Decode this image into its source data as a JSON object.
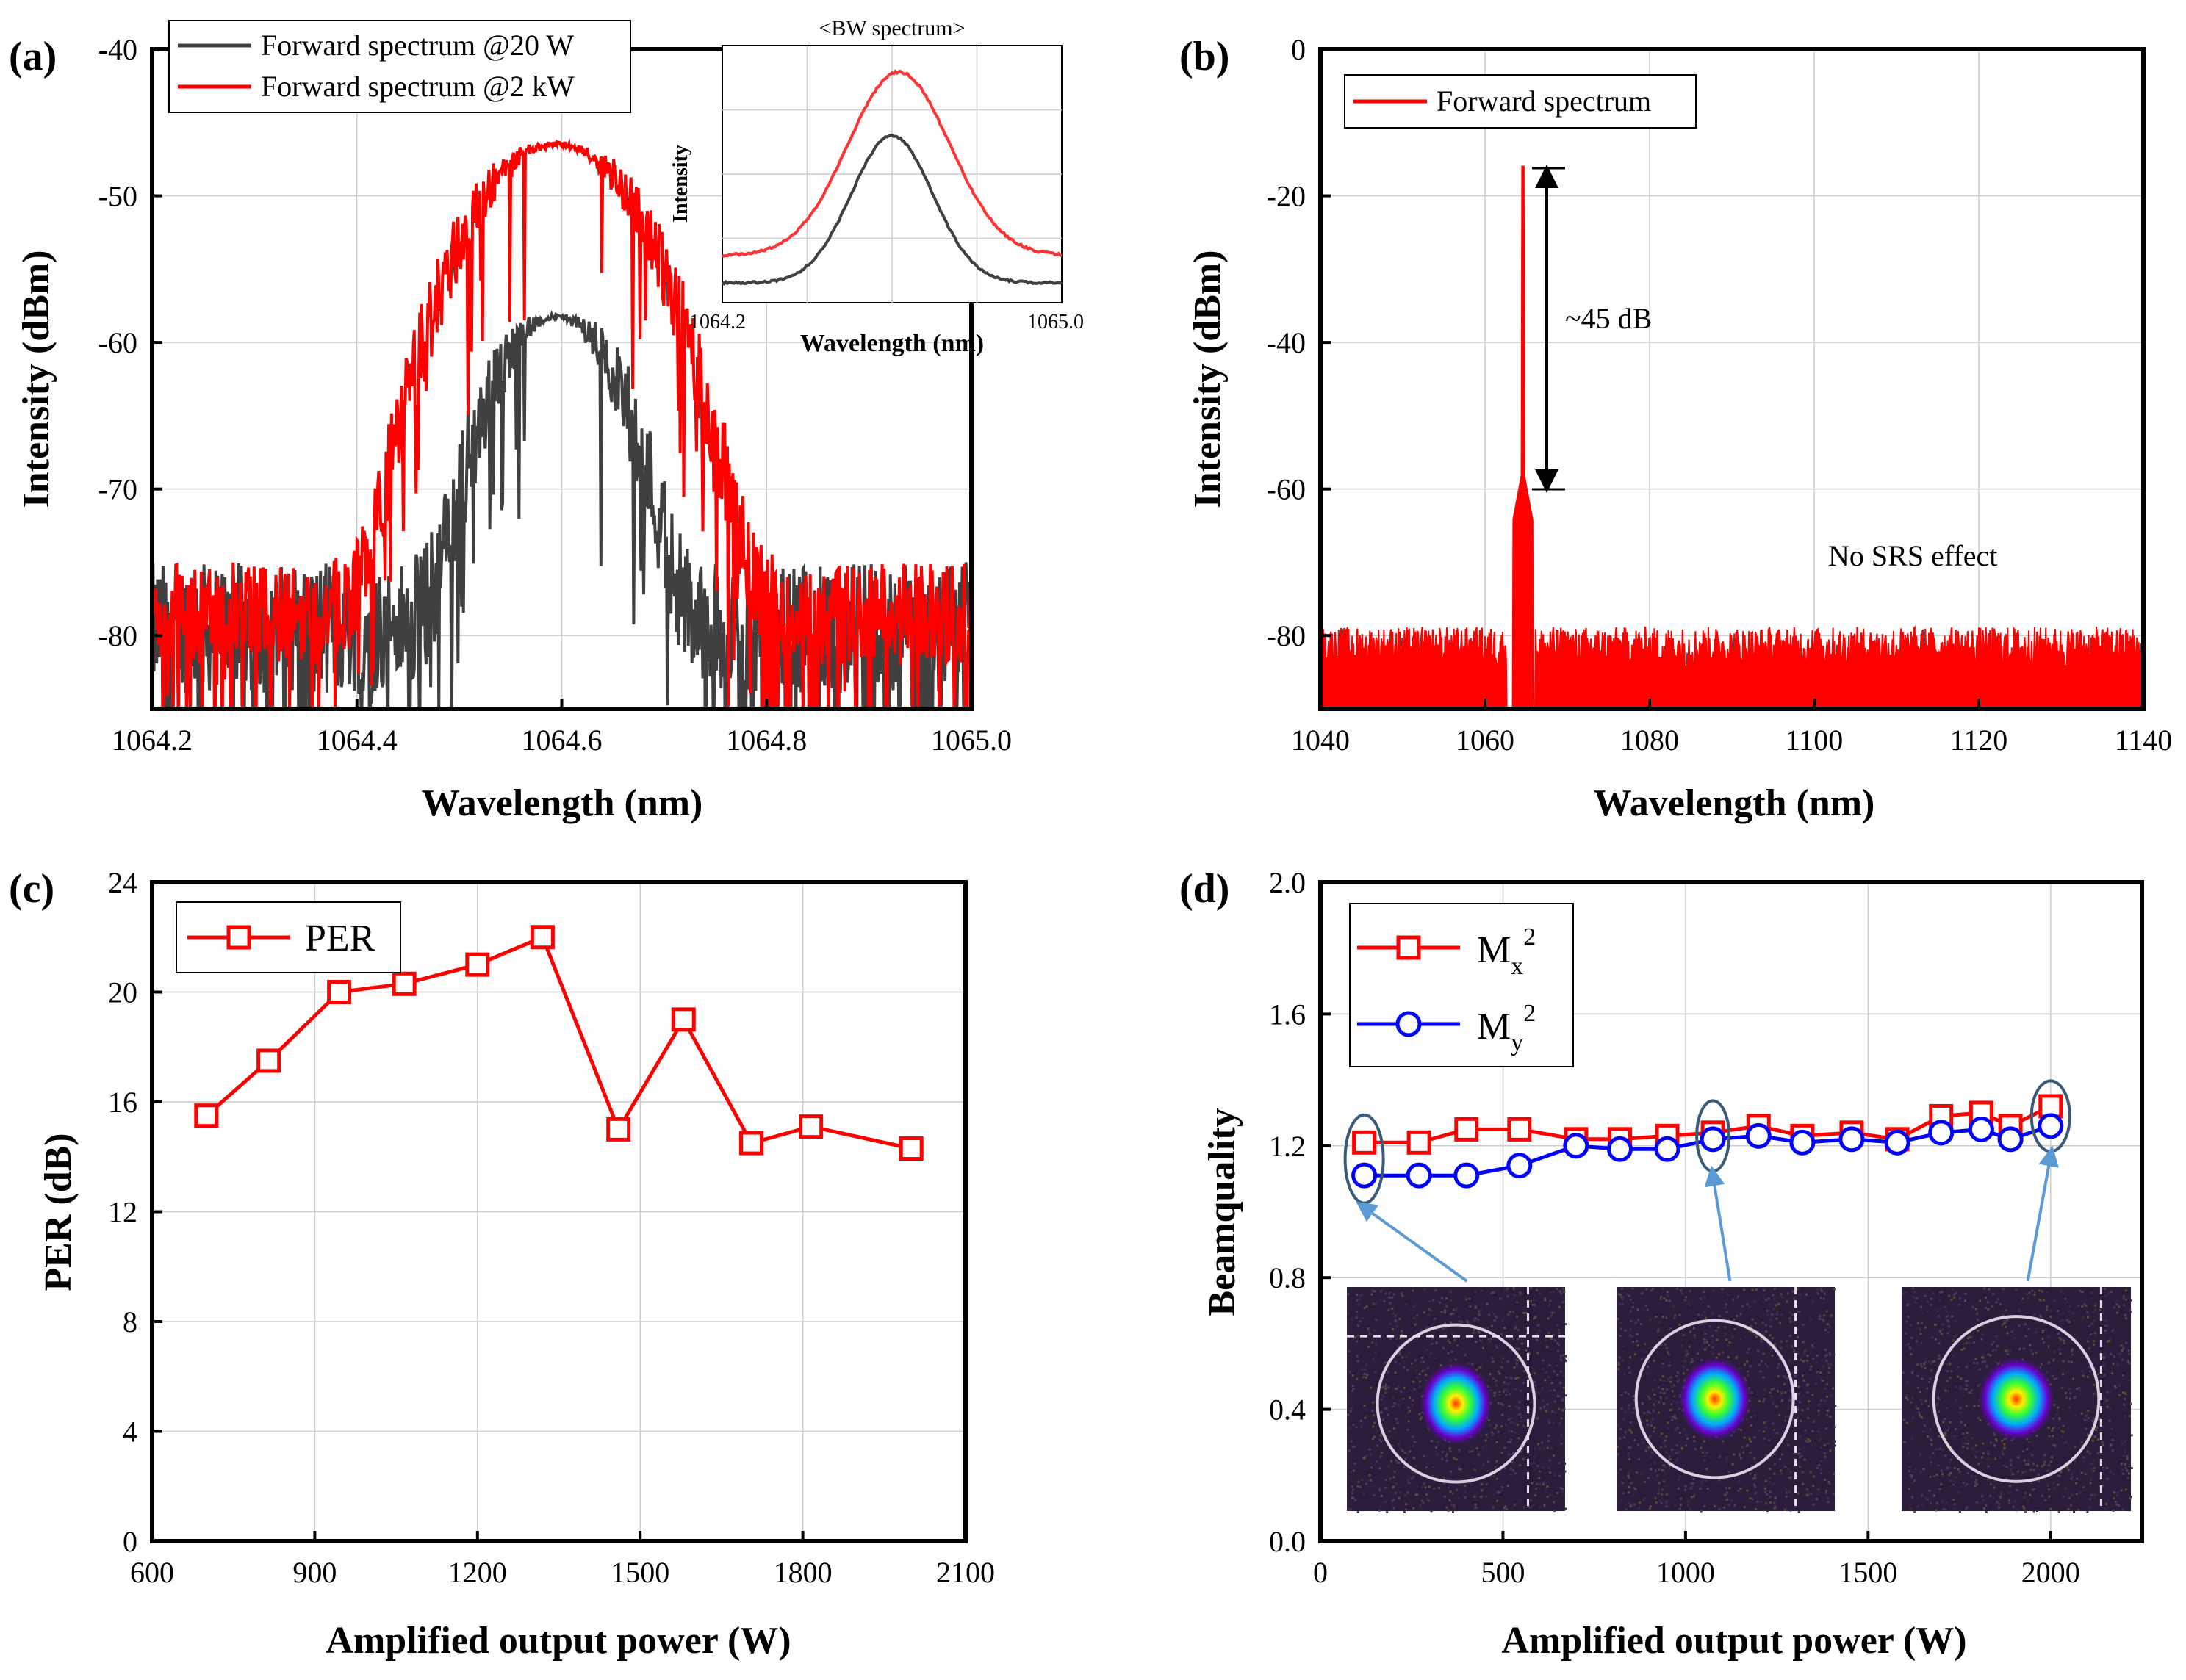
{
  "figure": {
    "a": {
      "label": "(a)",
      "legend": [
        "Forward spectrum @20 W",
        "Forward spectrum @2 kW"
      ],
      "inset": {
        "title": "<BW spectrum>",
        "ylabel": "Intensity",
        "xlabel": "Wavelength (nm)",
        "xtick_left": "1064.2",
        "xtick_right": "1065.0"
      }
    },
    "b": {
      "label": "(b)",
      "legend": [
        "Forward spectrum"
      ],
      "annotation_db": "~45 dB",
      "annotation_srs": "No SRS effect"
    },
    "c": {
      "label": "(c)",
      "legend": [
        "PER"
      ]
    },
    "d": {
      "label": "(d)",
      "legend": [
        "M",
        "M"
      ],
      "legend_sub": [
        "x",
        "y"
      ],
      "legend_sup": [
        "2",
        "2"
      ]
    }
  },
  "chart_data": [
    {
      "id": "a",
      "type": "line",
      "xlabel": "Wavelength (nm)",
      "ylabel": "Intensity (dBm)",
      "xlim": [
        1064.2,
        1065.0
      ],
      "ylim": [
        -85,
        -40
      ],
      "xticks": [
        "1064.2",
        "1064.4",
        "1064.6",
        "1064.8",
        "1065.0"
      ],
      "yticks": [
        "-40",
        "-50",
        "-60",
        "-70",
        "-80"
      ],
      "xtick_values": [
        1064.2,
        1064.4,
        1064.6,
        1064.8,
        1065.0
      ],
      "ytick_values": [
        -40,
        -50,
        -60,
        -70,
        -80
      ],
      "series": [
        {
          "name": "Forward spectrum @20 W",
          "color": "#404040",
          "peak_x": 1064.595,
          "peak_y": -58.3,
          "sigma": 0.045,
          "noise_floor": -79.5,
          "noise_amp": 4.5
        },
        {
          "name": "Forward spectrum @2 kW",
          "color": "#ff0000",
          "peak_x": 1064.595,
          "peak_y": -46.5,
          "sigma": 0.06,
          "noise_floor": -78.5,
          "noise_amp": 3.5
        }
      ]
    },
    {
      "id": "b",
      "type": "line",
      "xlabel": "Wavelength (nm)",
      "ylabel": "Intensity (dBm)",
      "xlim": [
        1040,
        1140
      ],
      "ylim": [
        -90,
        0
      ],
      "xticks": [
        "1040",
        "1060",
        "1080",
        "1100",
        "1120",
        "1140"
      ],
      "yticks": [
        "0",
        "-20",
        "-40",
        "-60",
        "-80"
      ],
      "xtick_values": [
        1040,
        1060,
        1080,
        1100,
        1120,
        1140
      ],
      "ytick_values": [
        0,
        -20,
        -40,
        -60,
        -80
      ],
      "series": [
        {
          "name": "Forward spectrum",
          "color": "#ff0000",
          "peak_x": 1064.6,
          "peak_y": -16,
          "noise_floor": -83,
          "noise_amp": 4
        }
      ],
      "arrow_range": [
        -16,
        -60
      ]
    },
    {
      "id": "c",
      "type": "line",
      "xlabel": "Amplified output power (W)",
      "ylabel": "PER (dB)",
      "xlim": [
        600,
        2100
      ],
      "ylim": [
        0,
        24
      ],
      "xticks": [
        "600",
        "900",
        "1200",
        "1500",
        "1800",
        "2100"
      ],
      "yticks": [
        "0",
        "4",
        "8",
        "12",
        "16",
        "20",
        "24"
      ],
      "xtick_values": [
        600,
        900,
        1200,
        1500,
        1800,
        2100
      ],
      "ytick_values": [
        0,
        4,
        8,
        12,
        16,
        20,
        24
      ],
      "series": [
        {
          "name": "PER",
          "color": "#ff0000",
          "marker": "square",
          "x": [
            700,
            815,
            945,
            1065,
            1200,
            1320,
            1460,
            1580,
            1705,
            1815,
            2000
          ],
          "y": [
            15.5,
            17.5,
            20.0,
            20.3,
            21.0,
            22.0,
            15.0,
            19.0,
            14.5,
            15.1,
            14.3
          ]
        }
      ]
    },
    {
      "id": "d",
      "type": "line",
      "xlabel": "Amplified output power (W)",
      "ylabel": "Beamquality",
      "xlim": [
        0,
        2250
      ],
      "ylim": [
        0.0,
        2.0
      ],
      "xticks": [
        "0",
        "500",
        "1000",
        "1500",
        "2000"
      ],
      "yticks": [
        "0.0",
        "0.4",
        "0.8",
        "1.2",
        "1.6",
        "2.0"
      ],
      "xtick_values": [
        0,
        500,
        1000,
        1500,
        2000
      ],
      "ytick_values": [
        0.0,
        0.4,
        0.8,
        1.2,
        1.6,
        2.0
      ],
      "series": [
        {
          "name": "Mx2",
          "color": "#ff0000",
          "marker": "square",
          "x": [
            120,
            270,
            400,
            545,
            700,
            820,
            950,
            1075,
            1200,
            1320,
            1455,
            1580,
            1700,
            1810,
            1890,
            2000
          ],
          "y": [
            1.21,
            1.21,
            1.25,
            1.25,
            1.22,
            1.22,
            1.23,
            1.24,
            1.26,
            1.23,
            1.24,
            1.22,
            1.29,
            1.3,
            1.26,
            1.32
          ]
        },
        {
          "name": "My2",
          "color": "#0000ff",
          "marker": "circle",
          "x": [
            120,
            270,
            400,
            545,
            700,
            820,
            950,
            1075,
            1200,
            1320,
            1455,
            1580,
            1700,
            1810,
            1890,
            2000
          ],
          "y": [
            1.11,
            1.11,
            1.11,
            1.14,
            1.2,
            1.19,
            1.19,
            1.22,
            1.23,
            1.21,
            1.22,
            1.21,
            1.24,
            1.25,
            1.22,
            1.26
          ]
        }
      ],
      "highlight_x": [
        120,
        1075,
        2000
      ]
    }
  ]
}
